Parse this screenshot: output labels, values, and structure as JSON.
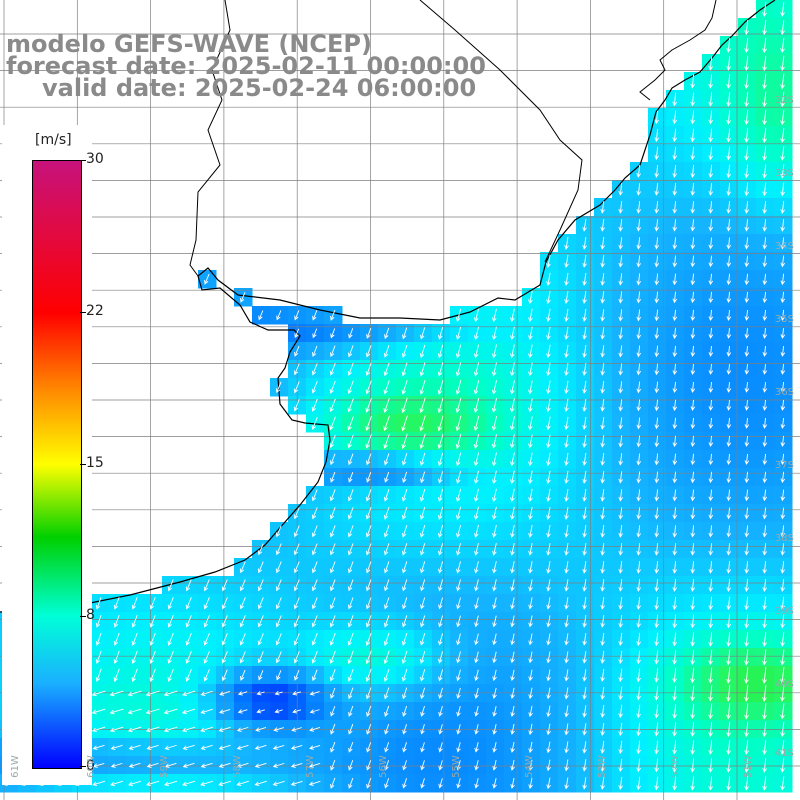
{
  "title": {
    "line1": "modelo GEFS-WAVE (NCEP)",
    "line2": "forecast date: 2025-02-11 00:00:00",
    "line3": "valid date: 2025-02-24 06:00:00"
  },
  "colorbar": {
    "unit": "[m/s]",
    "min": 0,
    "max": 30,
    "ticks": [
      "30",
      "22",
      "15",
      "8",
      "0"
    ],
    "colors": [
      "#0000ff",
      "#1ab0ff",
      "#00ffd8",
      "#00d000",
      "#ffff00",
      "#ff8c00",
      "#ff0000",
      "#c7127c"
    ]
  },
  "map": {
    "land_color": "#ffffff",
    "coast_color": "#000000",
    "grid_color": "#7f7f7f",
    "arrow_color": "#ffffff",
    "lat_labels": [
      "32S",
      "33S",
      "34S",
      "35S",
      "36S",
      "37S",
      "38S",
      "39S",
      "40S",
      "41S"
    ],
    "lon_labels": [
      "61W",
      "60W",
      "59W",
      "58W",
      "57W",
      "56W",
      "55W",
      "54W",
      "53W",
      "52W",
      "51W"
    ]
  }
}
